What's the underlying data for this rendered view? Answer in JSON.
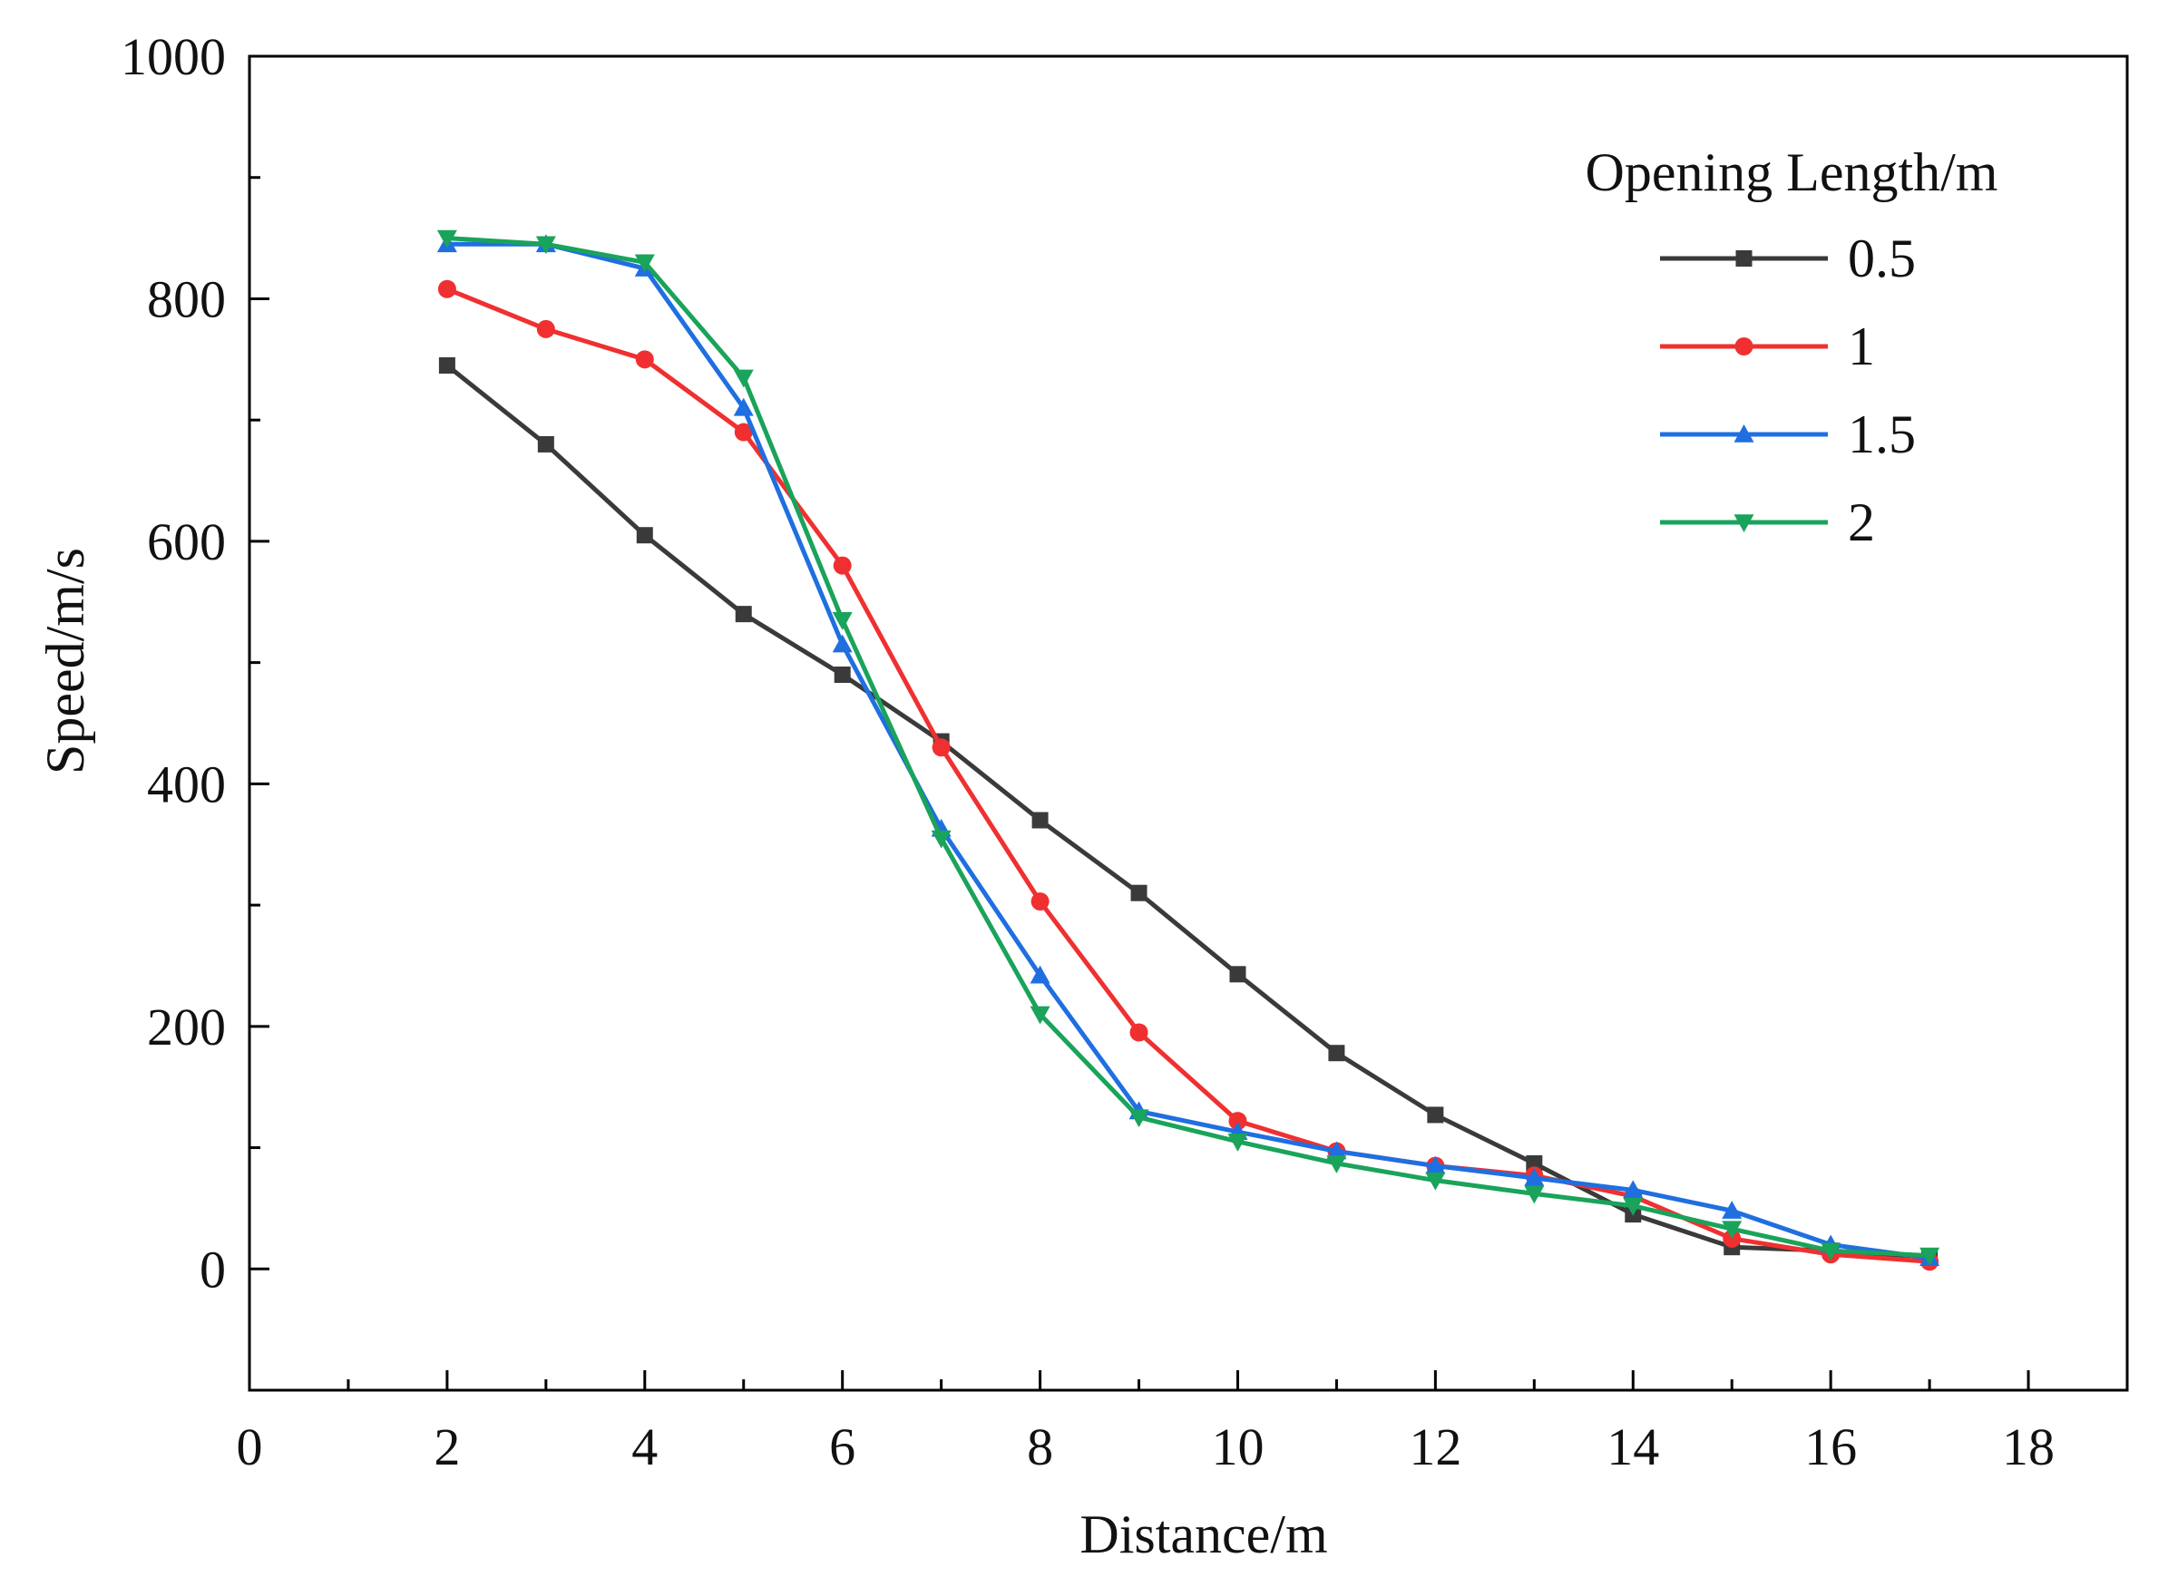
{
  "chart_data": {
    "type": "line",
    "title": "",
    "xlabel": "Distance/m",
    "ylabel": "Speed/m/s",
    "xlim": [
      0,
      19
    ],
    "ylim": [
      -100,
      1000
    ],
    "xticks": [
      0,
      2,
      4,
      6,
      8,
      10,
      12,
      14,
      16,
      18
    ],
    "xtick_labels": [
      "0",
      "2",
      "4",
      "6",
      "8",
      "10",
      "12",
      "14",
      "16",
      "18"
    ],
    "yticks": [
      0,
      200,
      400,
      600,
      800,
      1000
    ],
    "ytick_labels": [
      "0",
      "200",
      "400",
      "600",
      "800",
      "1000"
    ],
    "grid": false,
    "legend": {
      "title": "Opening Length/m",
      "placement": "top-right"
    },
    "x": [
      2,
      3,
      4,
      5,
      6,
      7,
      8,
      9,
      10,
      11,
      12,
      13,
      14,
      15,
      16,
      17
    ],
    "series": [
      {
        "name": "0.5",
        "color": "#3a3a3a",
        "marker": "square",
        "values": [
          745,
          680,
          605,
          540,
          490,
          435,
          370,
          310,
          243,
          178,
          127,
          87,
          45,
          18,
          15,
          10
        ]
      },
      {
        "name": "1",
        "color": "#f03030",
        "marker": "circle",
        "values": [
          808,
          775,
          750,
          690,
          580,
          430,
          303,
          195,
          122,
          97,
          85,
          77,
          60,
          25,
          12,
          6
        ]
      },
      {
        "name": "1.5",
        "color": "#1f6fe0",
        "marker": "triangle-up",
        "values": [
          845,
          845,
          825,
          710,
          515,
          363,
          242,
          130,
          113,
          97,
          85,
          75,
          65,
          48,
          20,
          9
        ]
      },
      {
        "name": "2",
        "color": "#1aa35a",
        "marker": "triangle-down",
        "values": [
          850,
          845,
          830,
          735,
          535,
          355,
          210,
          125,
          105,
          87,
          73,
          62,
          52,
          33,
          15,
          11
        ]
      }
    ]
  }
}
